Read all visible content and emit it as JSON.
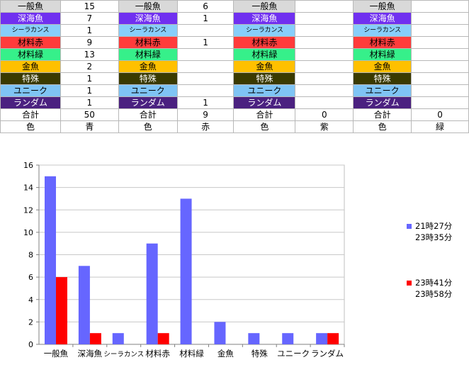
{
  "sheet": {
    "colors": {
      "一般魚": {
        "bg": "#d9d9d9",
        "fg": "#000000"
      },
      "深海魚": {
        "bg": "#7030f0",
        "fg": "#ffffff"
      },
      "シーラカンス": {
        "bg": "#87cefa",
        "fg": "#000000"
      },
      "材料赤": {
        "bg": "#ff3b3b",
        "fg": "#000000"
      },
      "材料緑": {
        "bg": "#36f08a",
        "fg": "#000000"
      },
      "金魚": {
        "bg": "#ffc000",
        "fg": "#000000"
      },
      "特殊": {
        "bg": "#3a3a00",
        "fg": "#ffffff"
      },
      "ユニーク": {
        "bg": "#7fc4f4",
        "fg": "#000000"
      },
      "ランダム": {
        "bg": "#4b2180",
        "fg": "#ffffff"
      }
    },
    "groups": [
      {
        "rows": [
          {
            "label": "一般魚",
            "value": "15"
          },
          {
            "label": "深海魚",
            "value": "7"
          },
          {
            "label": "シーラカンス",
            "value": "1"
          },
          {
            "label": "材料赤",
            "value": "9"
          },
          {
            "label": "材料緑",
            "value": "13"
          },
          {
            "label": "金魚",
            "value": "2"
          },
          {
            "label": "特殊",
            "value": "1"
          },
          {
            "label": "ユニーク",
            "value": "1"
          },
          {
            "label": "ランダム",
            "value": "1"
          }
        ],
        "total_label": "合計",
        "total": "50",
        "color_label": "色",
        "color": "青"
      },
      {
        "rows": [
          {
            "label": "一般魚",
            "value": "6"
          },
          {
            "label": "深海魚",
            "value": "1"
          },
          {
            "label": "シーラカンス",
            "value": ""
          },
          {
            "label": "材料赤",
            "value": "1"
          },
          {
            "label": "材料緑",
            "value": ""
          },
          {
            "label": "金魚",
            "value": ""
          },
          {
            "label": "特殊",
            "value": ""
          },
          {
            "label": "ユニーク",
            "value": ""
          },
          {
            "label": "ランダム",
            "value": "1"
          }
        ],
        "total_label": "合計",
        "total": "9",
        "color_label": "色",
        "color": "赤"
      },
      {
        "rows": [
          {
            "label": "一般魚",
            "value": ""
          },
          {
            "label": "深海魚",
            "value": ""
          },
          {
            "label": "シーラカンス",
            "value": ""
          },
          {
            "label": "材料赤",
            "value": ""
          },
          {
            "label": "材料緑",
            "value": ""
          },
          {
            "label": "金魚",
            "value": ""
          },
          {
            "label": "特殊",
            "value": ""
          },
          {
            "label": "ユニーク",
            "value": ""
          },
          {
            "label": "ランダム",
            "value": ""
          }
        ],
        "total_label": "合計",
        "total": "0",
        "color_label": "色",
        "color": "紫"
      },
      {
        "rows": [
          {
            "label": "一般魚",
            "value": ""
          },
          {
            "label": "深海魚",
            "value": ""
          },
          {
            "label": "シーラカンス",
            "value": ""
          },
          {
            "label": "材料赤",
            "value": ""
          },
          {
            "label": "材料緑",
            "value": ""
          },
          {
            "label": "金魚",
            "value": ""
          },
          {
            "label": "特殊",
            "value": ""
          },
          {
            "label": "ユニーク",
            "value": ""
          },
          {
            "label": "ランダム",
            "value": ""
          }
        ],
        "total_label": "合計",
        "total": "0",
        "color_label": "色",
        "color": "緑"
      }
    ]
  },
  "chart_data": {
    "type": "bar",
    "categories": [
      "一般魚",
      "深海魚",
      "シーラカンス",
      "材料赤",
      "材料緑",
      "金魚",
      "特殊",
      "ユニーク",
      "ランダム"
    ],
    "series": [
      {
        "name": "21時27分 23時35分",
        "legend_lines": [
          "21時27分",
          "23時35分"
        ],
        "color": "#6666ff",
        "values": [
          15,
          7,
          1,
          9,
          13,
          2,
          1,
          1,
          1
        ]
      },
      {
        "name": "23時41分 23時58分",
        "legend_lines": [
          "23時41分",
          "23時58分"
        ],
        "color": "#ff0000",
        "values": [
          6,
          1,
          0,
          1,
          0,
          0,
          0,
          0,
          1
        ]
      }
    ],
    "ylim": [
      0,
      16
    ],
    "yticks": [
      0,
      2,
      4,
      6,
      8,
      10,
      12,
      14,
      16
    ],
    "grid": true,
    "legend_position": "right"
  }
}
